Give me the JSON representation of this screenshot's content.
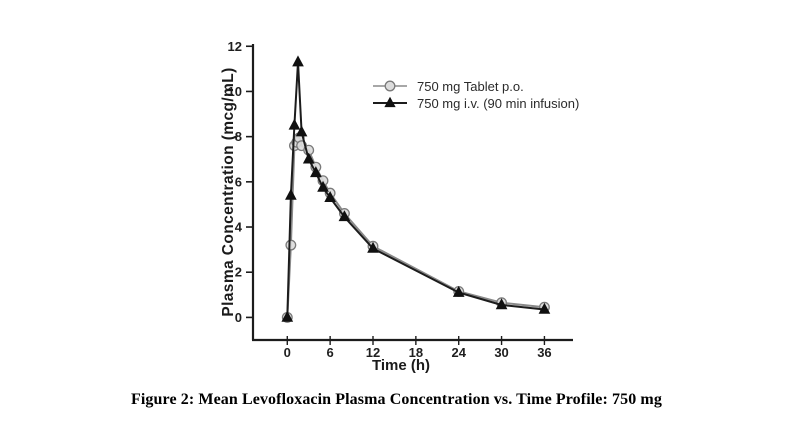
{
  "figure": {
    "caption": "Figure 2: Mean Levofloxacin Plasma Concentration vs. Time Profile: 750 mg"
  },
  "chart_data": {
    "type": "line",
    "title": "",
    "xlabel": "Time (h)",
    "ylabel": "Plasma Concentration (mcg/mL)",
    "x_ticks": [
      0,
      6,
      12,
      18,
      24,
      30,
      36
    ],
    "y_ticks": [
      0,
      2,
      4,
      6,
      8,
      10,
      12
    ],
    "xlim": [
      -4.8,
      40
    ],
    "ylim": [
      -1,
      12.1
    ],
    "grid": false,
    "legend_position": "inside-upper-right",
    "series": [
      {
        "name": "750 mg Tablet p.o.",
        "marker": "circle",
        "line_color": "#8a8a8a",
        "marker_fill": "#dcdcdc",
        "marker_stroke": "#7a7a7a",
        "x": [
          0,
          0.5,
          1,
          1.33,
          1.67,
          2,
          3,
          4,
          5,
          6,
          8,
          12,
          24,
          30,
          36
        ],
        "y": [
          0,
          3.2,
          7.6,
          7.75,
          7.95,
          7.6,
          7.4,
          6.65,
          6.05,
          5.5,
          4.6,
          3.15,
          1.15,
          0.65,
          0.45
        ]
      },
      {
        "name": "750 mg i.v. (90 min infusion)",
        "marker": "triangle",
        "line_color": "#1c1c1c",
        "marker_fill": "#111111",
        "marker_stroke": "#111111",
        "x": [
          0,
          0.5,
          1,
          1.5,
          2,
          3,
          4,
          5,
          6,
          8,
          12,
          24,
          30,
          36
        ],
        "y": [
          0,
          5.4,
          8.5,
          11.3,
          8.2,
          7.0,
          6.4,
          5.75,
          5.3,
          4.45,
          3.05,
          1.1,
          0.55,
          0.35
        ]
      }
    ],
    "colors": {
      "axis": "#1c1c1c",
      "tick_label": "#1f1f1f",
      "background": "#ffffff"
    }
  }
}
